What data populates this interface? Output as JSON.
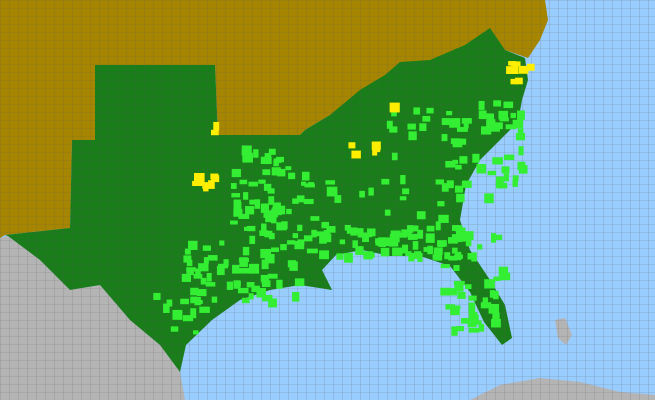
{
  "map": {
    "colors": {
      "ocean": "#99ccff",
      "foreign_land": "#b4b4b4",
      "other_states": "#a68600",
      "range_states": "#197d19",
      "present_counties": "#33ee33",
      "highlight_counties": "#ffee00",
      "county_lines": "#5a5a5a"
    }
  }
}
